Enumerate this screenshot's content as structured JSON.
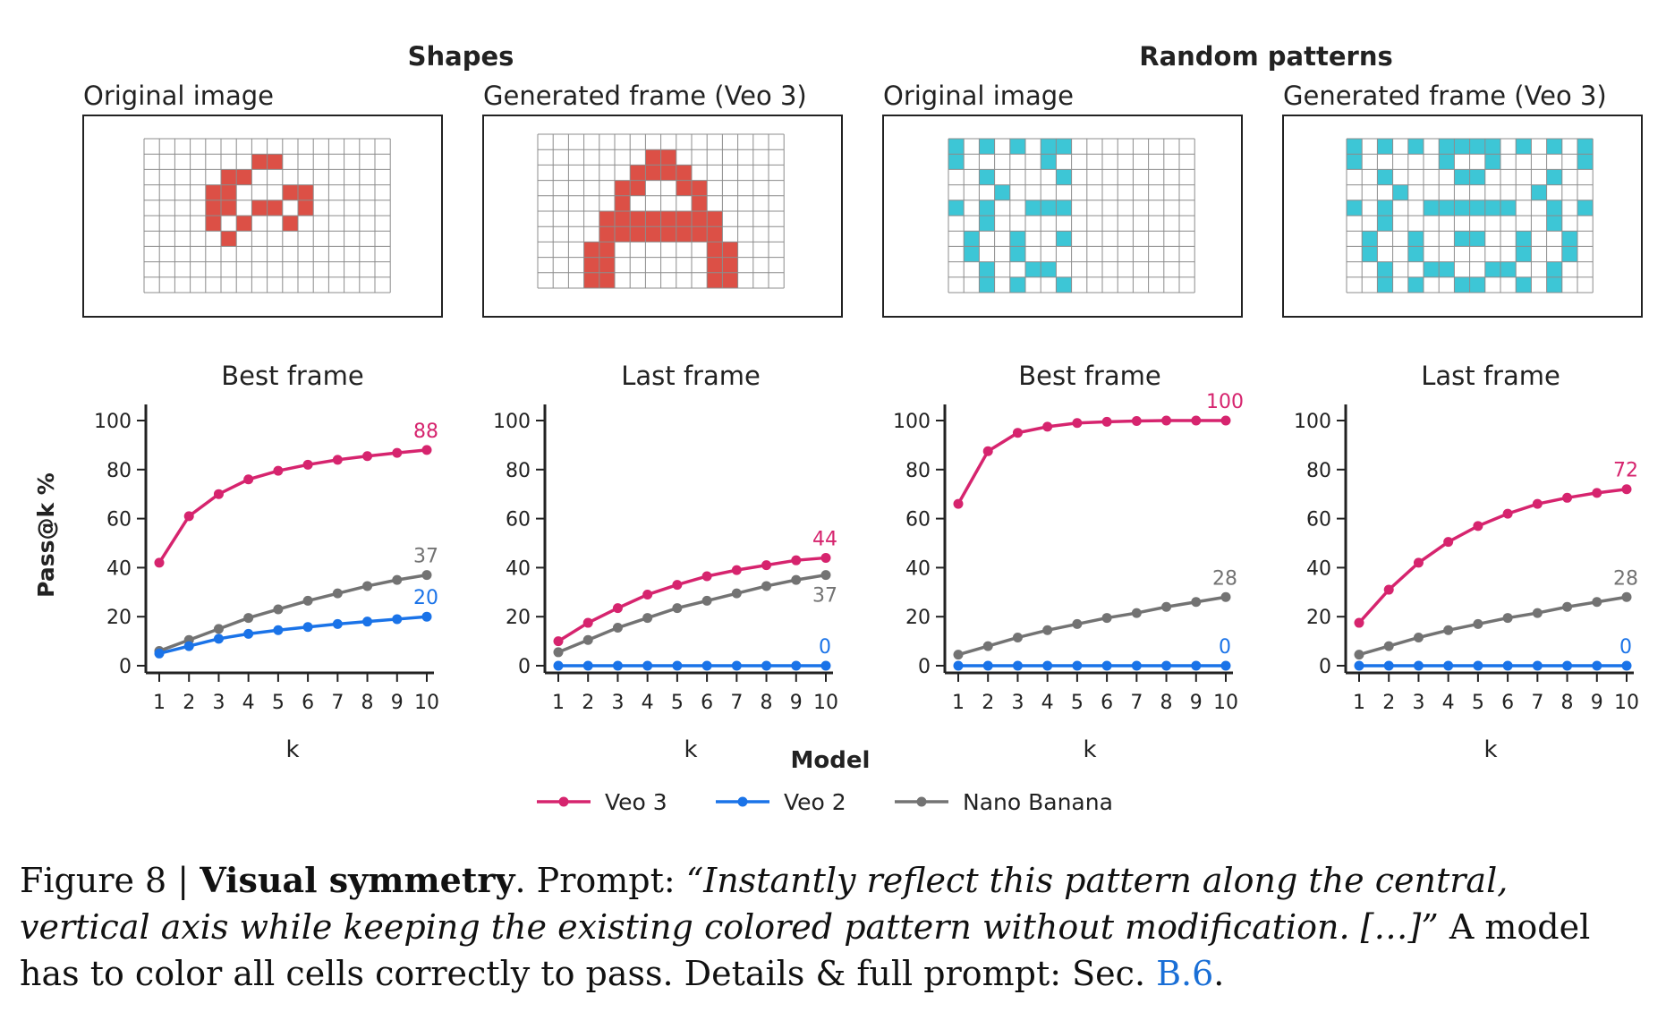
{
  "colors": {
    "veo3": "#d6246e",
    "veo2": "#1a73e8",
    "nano": "#737373",
    "shape_fill": "#dc5046",
    "pattern_fill": "#3dc6d6",
    "grid_line": "#8c8c8c",
    "frame": "#222222"
  },
  "sections": {
    "shapes": "Shapes",
    "random": "Random patterns"
  },
  "panels": {
    "p1": "Original image",
    "p2": "Generated frame (Veo 3)",
    "p3": "Original image",
    "p4": "Generated frame (Veo 3)"
  },
  "ylabel": "Pass@k %",
  "xlabel": "k",
  "legend": {
    "title": "Model",
    "items": [
      {
        "name": "Veo 3",
        "color": "#d6246e"
      },
      {
        "name": "Veo 2",
        "color": "#1a73e8"
      },
      {
        "name": "Nano Banana",
        "color": "#737373"
      }
    ]
  },
  "grids": {
    "shape_original": {
      "cols": 16,
      "rows": 10,
      "fill": "shape_fill",
      "cells": [
        [
          1,
          8
        ],
        [
          1,
          7
        ],
        [
          2,
          6
        ],
        [
          2,
          5
        ],
        [
          3,
          5
        ],
        [
          4,
          5
        ],
        [
          3,
          4
        ],
        [
          4,
          4
        ],
        [
          5,
          4
        ],
        [
          6,
          5
        ],
        [
          5,
          6
        ],
        [
          4,
          7
        ],
        [
          4,
          8
        ],
        [
          5,
          9
        ],
        [
          3,
          9
        ],
        [
          3,
          10
        ],
        [
          4,
          10
        ]
      ]
    },
    "shape_generated": {
      "cols": 16,
      "rows": 10,
      "fill": "shape_fill",
      "cells": [
        [
          1,
          7
        ],
        [
          1,
          8
        ],
        [
          2,
          6
        ],
        [
          2,
          7
        ],
        [
          2,
          8
        ],
        [
          2,
          9
        ],
        [
          3,
          5
        ],
        [
          3,
          6
        ],
        [
          3,
          9
        ],
        [
          3,
          10
        ],
        [
          4,
          5
        ],
        [
          4,
          10
        ],
        [
          5,
          4
        ],
        [
          5,
          5
        ],
        [
          5,
          6
        ],
        [
          5,
          7
        ],
        [
          5,
          8
        ],
        [
          5,
          9
        ],
        [
          5,
          10
        ],
        [
          5,
          11
        ],
        [
          6,
          4
        ],
        [
          6,
          5
        ],
        [
          6,
          6
        ],
        [
          6,
          7
        ],
        [
          6,
          8
        ],
        [
          6,
          9
        ],
        [
          6,
          10
        ],
        [
          6,
          11
        ],
        [
          7,
          3
        ],
        [
          7,
          4
        ],
        [
          7,
          11
        ],
        [
          7,
          12
        ],
        [
          8,
          3
        ],
        [
          8,
          4
        ],
        [
          8,
          11
        ],
        [
          8,
          12
        ],
        [
          9,
          3
        ],
        [
          9,
          4
        ],
        [
          9,
          11
        ],
        [
          9,
          12
        ]
      ]
    },
    "random_original": {
      "cols": 16,
      "rows": 10,
      "fill": "pattern_fill",
      "cells": [
        [
          0,
          0
        ],
        [
          0,
          2
        ],
        [
          0,
          4
        ],
        [
          0,
          6
        ],
        [
          0,
          7
        ],
        [
          1,
          0
        ],
        [
          1,
          6
        ],
        [
          2,
          2
        ],
        [
          2,
          7
        ],
        [
          3,
          3
        ],
        [
          4,
          0
        ],
        [
          4,
          2
        ],
        [
          4,
          5
        ],
        [
          4,
          6
        ],
        [
          4,
          7
        ],
        [
          5,
          2
        ],
        [
          6,
          1
        ],
        [
          6,
          4
        ],
        [
          6,
          7
        ],
        [
          7,
          1
        ],
        [
          7,
          4
        ],
        [
          8,
          2
        ],
        [
          8,
          5
        ],
        [
          8,
          6
        ],
        [
          9,
          2
        ],
        [
          9,
          4
        ],
        [
          9,
          7
        ]
      ]
    },
    "random_generated": {
      "cols": 16,
      "rows": 10,
      "fill": "pattern_fill",
      "cells": [
        [
          0,
          0
        ],
        [
          0,
          2
        ],
        [
          0,
          4
        ],
        [
          0,
          6
        ],
        [
          0,
          7
        ],
        [
          0,
          8
        ],
        [
          0,
          9
        ],
        [
          0,
          11
        ],
        [
          0,
          13
        ],
        [
          0,
          15
        ],
        [
          1,
          0
        ],
        [
          1,
          6
        ],
        [
          1,
          9
        ],
        [
          1,
          15
        ],
        [
          2,
          2
        ],
        [
          2,
          7
        ],
        [
          2,
          8
        ],
        [
          2,
          13
        ],
        [
          3,
          3
        ],
        [
          3,
          12
        ],
        [
          4,
          0
        ],
        [
          4,
          2
        ],
        [
          4,
          5
        ],
        [
          4,
          6
        ],
        [
          4,
          7
        ],
        [
          4,
          8
        ],
        [
          4,
          9
        ],
        [
          4,
          10
        ],
        [
          4,
          13
        ],
        [
          4,
          15
        ],
        [
          5,
          2
        ],
        [
          5,
          13
        ],
        [
          6,
          1
        ],
        [
          6,
          4
        ],
        [
          6,
          7
        ],
        [
          6,
          8
        ],
        [
          6,
          11
        ],
        [
          6,
          14
        ],
        [
          7,
          1
        ],
        [
          7,
          4
        ],
        [
          7,
          11
        ],
        [
          7,
          14
        ],
        [
          8,
          2
        ],
        [
          8,
          5
        ],
        [
          8,
          6
        ],
        [
          8,
          9
        ],
        [
          8,
          10
        ],
        [
          8,
          13
        ],
        [
          9,
          2
        ],
        [
          9,
          4
        ],
        [
          9,
          7
        ],
        [
          9,
          8
        ],
        [
          9,
          11
        ],
        [
          9,
          13
        ]
      ]
    }
  },
  "chart_data": [
    {
      "type": "line",
      "title": "Best frame",
      "group": "Shapes",
      "xlabel": "k",
      "ylabel": "Pass@k %",
      "x": [
        1,
        2,
        3,
        4,
        5,
        6,
        7,
        8,
        9,
        10
      ],
      "ylim": [
        0,
        100
      ],
      "yticks": [
        0,
        20,
        40,
        60,
        80,
        100
      ],
      "series": [
        {
          "name": "Veo 3",
          "color": "#d6246e",
          "values": [
            42,
            61,
            70,
            76,
            79.5,
            82,
            84,
            85.5,
            86.8,
            88
          ],
          "end_label": "88"
        },
        {
          "name": "Veo 2",
          "color": "#1a73e8",
          "values": [
            5,
            8,
            11,
            13,
            14.5,
            15.8,
            17,
            18,
            19,
            20
          ],
          "end_label": "20"
        },
        {
          "name": "Nano Banana",
          "color": "#737373",
          "values": [
            6,
            10.5,
            15,
            19.5,
            23,
            26.5,
            29.5,
            32.5,
            35,
            37
          ],
          "end_label": "37"
        }
      ]
    },
    {
      "type": "line",
      "title": "Last frame",
      "group": "Shapes",
      "xlabel": "k",
      "ylabel": "Pass@k %",
      "x": [
        1,
        2,
        3,
        4,
        5,
        6,
        7,
        8,
        9,
        10
      ],
      "ylim": [
        0,
        100
      ],
      "yticks": [
        0,
        20,
        40,
        60,
        80,
        100
      ],
      "series": [
        {
          "name": "Veo 3",
          "color": "#d6246e",
          "values": [
            10,
            17.5,
            23.5,
            29,
            33,
            36.5,
            39,
            41,
            43,
            44
          ],
          "end_label": "44"
        },
        {
          "name": "Veo 2",
          "color": "#1a73e8",
          "values": [
            0,
            0,
            0,
            0,
            0,
            0,
            0,
            0,
            0,
            0
          ],
          "end_label": "0"
        },
        {
          "name": "Nano Banana",
          "color": "#737373",
          "values": [
            5.5,
            10.5,
            15.5,
            19.5,
            23.5,
            26.5,
            29.5,
            32.5,
            35,
            37
          ],
          "end_label": "37"
        }
      ]
    },
    {
      "type": "line",
      "title": "Best frame",
      "group": "Random patterns",
      "xlabel": "k",
      "ylabel": "Pass@k %",
      "x": [
        1,
        2,
        3,
        4,
        5,
        6,
        7,
        8,
        9,
        10
      ],
      "ylim": [
        0,
        100
      ],
      "yticks": [
        0,
        20,
        40,
        60,
        80,
        100
      ],
      "series": [
        {
          "name": "Veo 3",
          "color": "#d6246e",
          "values": [
            66,
            87.5,
            95,
            97.5,
            99,
            99.5,
            99.8,
            100,
            100,
            100
          ],
          "end_label": "100"
        },
        {
          "name": "Veo 2",
          "color": "#1a73e8",
          "values": [
            0,
            0,
            0,
            0,
            0,
            0,
            0,
            0,
            0,
            0
          ],
          "end_label": "0"
        },
        {
          "name": "Nano Banana",
          "color": "#737373",
          "values": [
            4.5,
            8,
            11.5,
            14.5,
            17,
            19.5,
            21.5,
            24,
            26,
            28
          ],
          "end_label": "28"
        }
      ]
    },
    {
      "type": "line",
      "title": "Last frame",
      "group": "Random patterns",
      "xlabel": "k",
      "ylabel": "Pass@k %",
      "x": [
        1,
        2,
        3,
        4,
        5,
        6,
        7,
        8,
        9,
        10
      ],
      "ylim": [
        0,
        100
      ],
      "yticks": [
        0,
        20,
        40,
        60,
        80,
        100
      ],
      "series": [
        {
          "name": "Veo 3",
          "color": "#d6246e",
          "values": [
            17.5,
            31,
            42,
            50.5,
            57,
            62,
            66,
            68.5,
            70.5,
            72
          ],
          "end_label": "72"
        },
        {
          "name": "Veo 2",
          "color": "#1a73e8",
          "values": [
            0,
            0,
            0,
            0,
            0,
            0,
            0,
            0,
            0,
            0
          ],
          "end_label": "0"
        },
        {
          "name": "Nano Banana",
          "color": "#737373",
          "values": [
            4.5,
            8,
            11.5,
            14.5,
            17,
            19.5,
            21.5,
            24,
            26,
            28
          ],
          "end_label": "28"
        }
      ]
    }
  ],
  "caption": {
    "prefix": "Figure 8 | ",
    "title": "Visual symmetry",
    "after_title": ". Prompt: ",
    "quote": "“Instantly reflect this pattern along the central, vertical axis while keeping the existing colored pattern without modification. […]”",
    "body": " A model has to color all cells correctly to pass. Details & full prompt: Sec. ",
    "ref": "B.6",
    "end": "."
  }
}
